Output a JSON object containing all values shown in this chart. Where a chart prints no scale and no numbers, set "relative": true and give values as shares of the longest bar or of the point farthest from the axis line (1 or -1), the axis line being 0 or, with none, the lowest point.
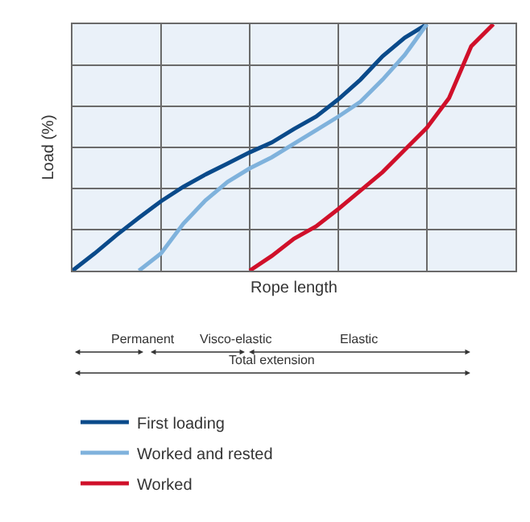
{
  "chart_data": {
    "type": "line",
    "relative": true,
    "xlabel": "Rope length",
    "ylabel": "Load (%)",
    "categories": [
      null,
      null,
      null,
      null,
      null,
      null,
      null,
      null,
      null,
      null,
      null,
      null,
      null,
      null,
      null,
      null,
      null,
      null,
      null,
      null,
      null
    ],
    "grid": true,
    "legend": "bottom",
    "line_style": "solid",
    "series": [
      {
        "name": "First loading",
        "color": "#0a4a8a",
        "values": [
          0,
          0.07,
          0.145,
          0.215,
          0.282,
          0.34,
          0.39,
          0.435,
          0.48,
          0.52,
          0.575,
          0.625,
          0.695,
          0.775,
          0.87,
          0.945,
          1.0,
          null,
          null,
          null,
          null
        ]
      },
      {
        "name": "Worked and rested",
        "color": "#7fb2dc",
        "values": [
          null,
          null,
          null,
          0,
          0.07,
          0.19,
          0.285,
          0.36,
          0.415,
          0.46,
          0.515,
          0.57,
          0.625,
          0.685,
          0.775,
          0.875,
          1.0,
          null,
          null,
          null,
          null
        ]
      },
      {
        "name": "Worked",
        "color": "#d0102a",
        "values": [
          null,
          null,
          null,
          null,
          null,
          null,
          null,
          null,
          0,
          0.06,
          0.13,
          0.18,
          0.25,
          0.325,
          0.4,
          0.49,
          0.58,
          0.7,
          0.91,
          1.0,
          null
        ]
      }
    ],
    "annotations": [
      "Permanent",
      "Visco-elastic",
      "Elastic",
      "Total extension"
    ]
  }
}
